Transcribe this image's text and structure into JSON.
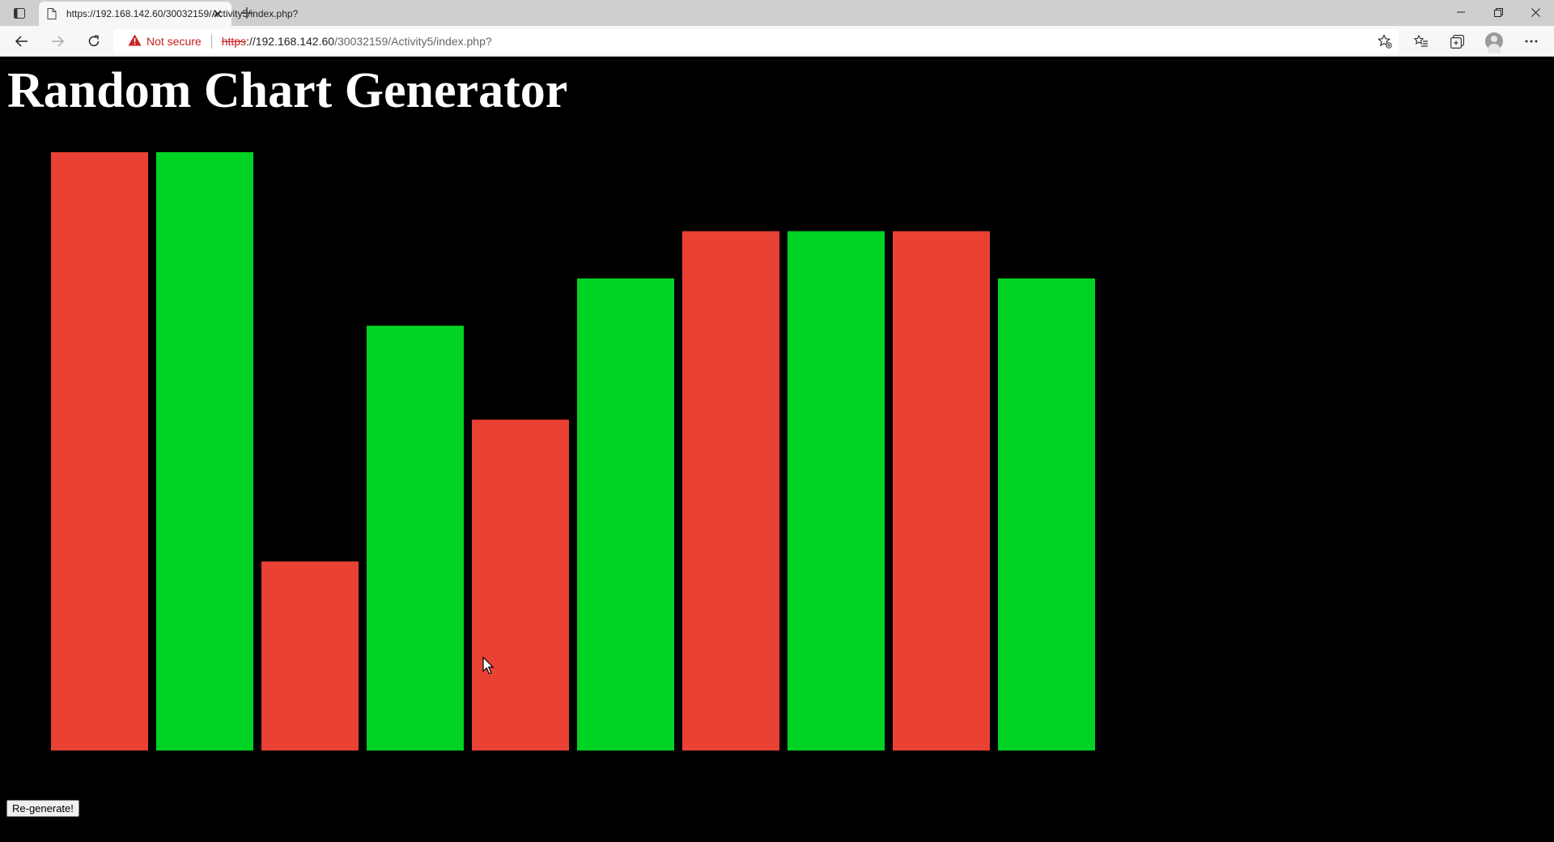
{
  "browser": {
    "tab": {
      "title": "https://192.168.142.60/30032159/Activity5/index.php?"
    },
    "address_bar": {
      "security_label": "Not secure",
      "url_scheme": "https",
      "url_host": "://192.168.142.60",
      "url_path": "/30032159/Activity5/index.php?"
    }
  },
  "page": {
    "title": "Random Chart Generator",
    "regenerate_label": "Re-generate!"
  },
  "colors": {
    "red": "#e94235",
    "green": "#00d323",
    "background": "#000000"
  },
  "chart_data": {
    "type": "bar",
    "values": [
      100,
      100,
      31.6,
      71,
      55.3,
      78.9,
      86.8,
      86.8,
      86.8,
      78.9
    ],
    "colors": [
      "red",
      "green",
      "red",
      "green",
      "red",
      "green",
      "red",
      "green",
      "red",
      "green"
    ],
    "ylim": [
      0,
      100
    ],
    "grid": false,
    "legend": "none"
  }
}
